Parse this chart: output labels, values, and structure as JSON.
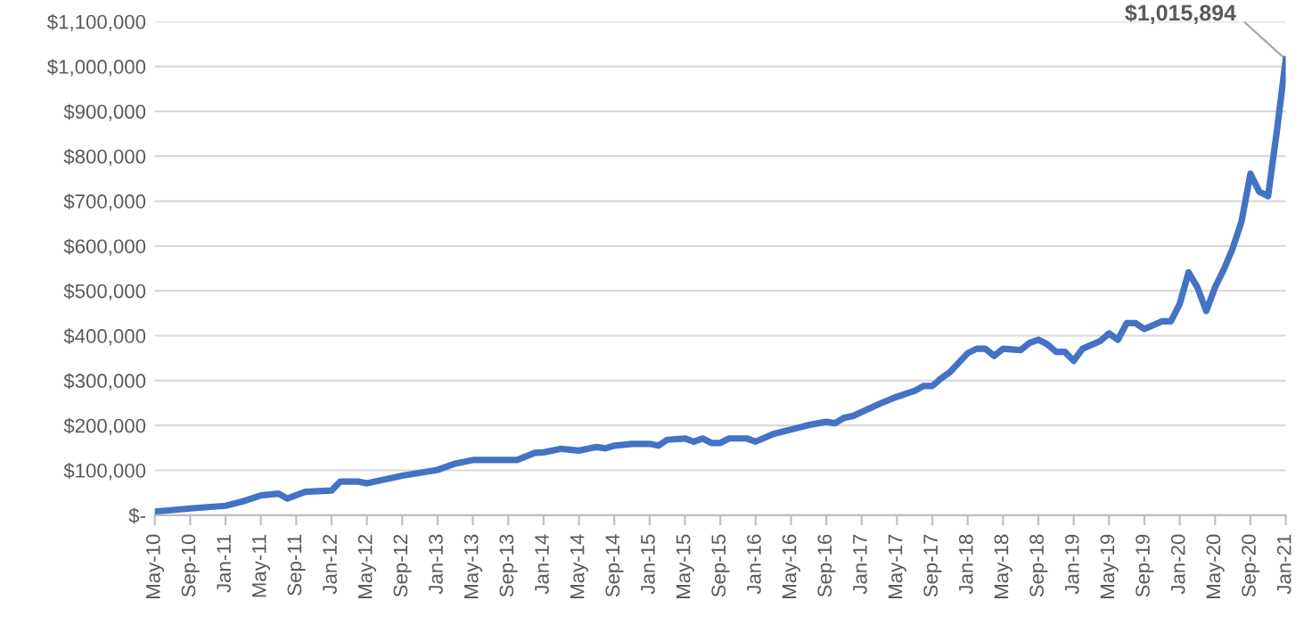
{
  "chart_data": {
    "type": "line",
    "line_style": "solid",
    "marker": "none",
    "grid": "y",
    "legend": false,
    "x": [
      "2010-05",
      "2010-09",
      "2011-01",
      "2011-03",
      "2011-05",
      "2011-07",
      "2011-08",
      "2011-10",
      "2012-01",
      "2012-02",
      "2012-04",
      "2012-05",
      "2012-09",
      "2013-01",
      "2013-03",
      "2013-05",
      "2013-10",
      "2013-12",
      "2014-01",
      "2014-03",
      "2014-05",
      "2014-07",
      "2014-08",
      "2014-09",
      "2014-11",
      "2015-01",
      "2015-02",
      "2015-03",
      "2015-05",
      "2015-06",
      "2015-07",
      "2015-08",
      "2015-09",
      "2015-10",
      "2015-12",
      "2016-01",
      "2016-03",
      "2016-05",
      "2016-07",
      "2016-09",
      "2016-10",
      "2016-11",
      "2016-12",
      "2017-03",
      "2017-05",
      "2017-07",
      "2017-08",
      "2017-09",
      "2017-10",
      "2017-11",
      "2018-01",
      "2018-02",
      "2018-03",
      "2018-04",
      "2018-05",
      "2018-07",
      "2018-08",
      "2018-09",
      "2018-10",
      "2018-11",
      "2018-12",
      "2019-01",
      "2019-02",
      "2019-04",
      "2019-05",
      "2019-06",
      "2019-07",
      "2019-08",
      "2019-09",
      "2019-11",
      "2019-12",
      "2020-01",
      "2020-02",
      "2020-03",
      "2020-04",
      "2020-05",
      "2020-06",
      "2020-07",
      "2020-08",
      "2020-09",
      "2020-10",
      "2020-11",
      "2020-12",
      "2021-01"
    ],
    "series": [
      {
        "color": "#4472c4",
        "values": [
          8000,
          15000,
          21000,
          31000,
          44000,
          48000,
          37000,
          52000,
          55000,
          75000,
          75000,
          71000,
          88000,
          101000,
          115000,
          123000,
          123000,
          139000,
          140000,
          148000,
          144000,
          152000,
          149000,
          155000,
          159000,
          159000,
          155000,
          168000,
          171000,
          164000,
          171000,
          161000,
          161000,
          171000,
          171000,
          164000,
          181000,
          191000,
          201000,
          208000,
          205000,
          217000,
          221000,
          248000,
          264000,
          277000,
          288000,
          288000,
          305000,
          319000,
          361000,
          371000,
          371000,
          355000,
          371000,
          368000,
          384000,
          391000,
          381000,
          364000,
          364000,
          344000,
          371000,
          388000,
          405000,
          391000,
          428000,
          428000,
          415000,
          432000,
          432000,
          471000,
          541000,
          508000,
          455000,
          508000,
          548000,
          595000,
          655000,
          761000,
          721000,
          711000,
          857000,
          1015894
        ]
      }
    ],
    "annotations": [
      {
        "text": "$1,015,894",
        "x": "2021-01",
        "y": 1015894
      }
    ],
    "xlim": [
      "2010-05",
      "2021-01"
    ],
    "xticks": [
      {
        "value": "2010-05",
        "label": "May-10"
      },
      {
        "value": "2010-09",
        "label": "Sep-10"
      },
      {
        "value": "2011-01",
        "label": "Jan-11"
      },
      {
        "value": "2011-05",
        "label": "May-11"
      },
      {
        "value": "2011-09",
        "label": "Sep-11"
      },
      {
        "value": "2012-01",
        "label": "Jan-12"
      },
      {
        "value": "2012-05",
        "label": "May-12"
      },
      {
        "value": "2012-09",
        "label": "Sep-12"
      },
      {
        "value": "2013-01",
        "label": "Jan-13"
      },
      {
        "value": "2013-05",
        "label": "May-13"
      },
      {
        "value": "2013-09",
        "label": "Sep-13"
      },
      {
        "value": "2014-01",
        "label": "Jan-14"
      },
      {
        "value": "2014-05",
        "label": "May-14"
      },
      {
        "value": "2014-09",
        "label": "Sep-14"
      },
      {
        "value": "2015-01",
        "label": "Jan-15"
      },
      {
        "value": "2015-05",
        "label": "May-15"
      },
      {
        "value": "2015-09",
        "label": "Sep-15"
      },
      {
        "value": "2016-01",
        "label": "Jan-16"
      },
      {
        "value": "2016-05",
        "label": "May-16"
      },
      {
        "value": "2016-09",
        "label": "Sep-16"
      },
      {
        "value": "2017-01",
        "label": "Jan-17"
      },
      {
        "value": "2017-05",
        "label": "May-17"
      },
      {
        "value": "2017-09",
        "label": "Sep-17"
      },
      {
        "value": "2018-01",
        "label": "Jan-18"
      },
      {
        "value": "2018-05",
        "label": "May-18"
      },
      {
        "value": "2018-09",
        "label": "Sep-18"
      },
      {
        "value": "2019-01",
        "label": "Jan-19"
      },
      {
        "value": "2019-05",
        "label": "May-19"
      },
      {
        "value": "2019-09",
        "label": "Sep-19"
      },
      {
        "value": "2020-01",
        "label": "Jan-20"
      },
      {
        "value": "2020-05",
        "label": "May-20"
      },
      {
        "value": "2020-09",
        "label": "Sep-20"
      },
      {
        "value": "2021-01",
        "label": "Jan-21"
      }
    ],
    "ylim": [
      0,
      1100000
    ],
    "yticks": [
      {
        "value": 0,
        "label": "$-"
      },
      {
        "value": 100000,
        "label": "$100,000"
      },
      {
        "value": 200000,
        "label": "$200,000"
      },
      {
        "value": 300000,
        "label": "$300,000"
      },
      {
        "value": 400000,
        "label": "$400,000"
      },
      {
        "value": 500000,
        "label": "$500,000"
      },
      {
        "value": 600000,
        "label": "$600,000"
      },
      {
        "value": 700000,
        "label": "$700,000"
      },
      {
        "value": 800000,
        "label": "$800,000"
      },
      {
        "value": 900000,
        "label": "$900,000"
      },
      {
        "value": 1000000,
        "label": "$1,000,000"
      },
      {
        "value": 1100000,
        "label": "$1,100,000"
      }
    ]
  }
}
